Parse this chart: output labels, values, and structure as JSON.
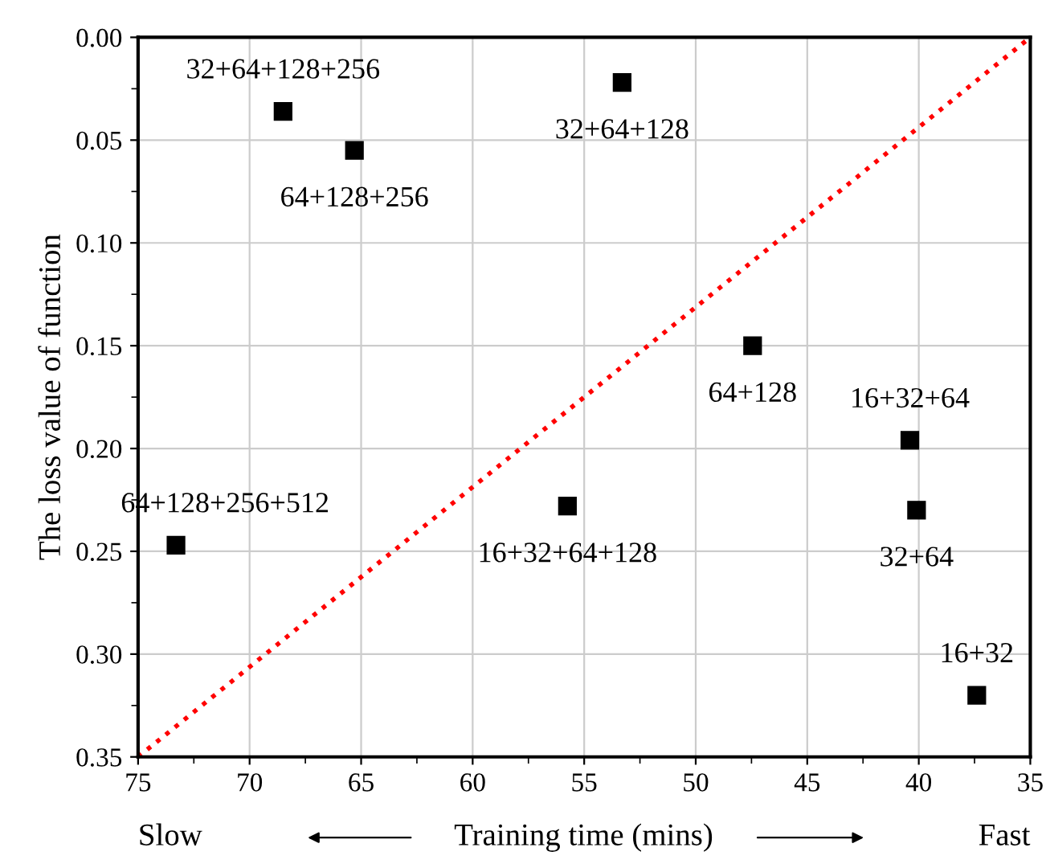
{
  "chart_data": {
    "type": "scatter",
    "xlabel": "Training time (mins)",
    "ylabel": "The loss value of function",
    "series": [
      {
        "color": "#000000",
        "marker": "square",
        "x": [
          68.5,
          65.3,
          53.3,
          47.45,
          40.4,
          40.1,
          37.4,
          55.75,
          73.3
        ],
        "values": [
          0.036,
          0.055,
          0.022,
          0.15,
          0.196,
          0.23,
          0.32,
          0.228,
          0.247
        ]
      },
      {
        "type": "line",
        "color": "#ff0000",
        "line_style": "dotted",
        "x": [
          75,
          35
        ],
        "values": [
          0.35,
          0
        ]
      }
    ],
    "annotations": [
      {
        "text": "32+64+128+256",
        "x": 68.5,
        "y": 0.036
      },
      {
        "text": "64+128+256",
        "x": 65.3,
        "y": 0.055
      },
      {
        "text": "32+64+128",
        "x": 53.3,
        "y": 0.022
      },
      {
        "text": "64+128",
        "x": 47.45,
        "y": 0.15
      },
      {
        "text": "16+32+64",
        "x": 40.4,
        "y": 0.196
      },
      {
        "text": "32+64",
        "x": 40.1,
        "y": 0.23
      },
      {
        "text": "16+32",
        "x": 37.4,
        "y": 0.32
      },
      {
        "text": "16+32+64+128",
        "x": 55.75,
        "y": 0.228
      },
      {
        "text": "64+128+256+512",
        "x": 73.3,
        "y": 0.247
      },
      "Slow",
      "Fast"
    ],
    "xlim": [
      75,
      35
    ],
    "ylim": [
      0.35,
      0
    ],
    "xticks": [
      75,
      70,
      65,
      60,
      55,
      50,
      45,
      40,
      35
    ],
    "yticks": [
      {
        "value": 0.35,
        "label": "0.35"
      },
      {
        "value": 0.3,
        "label": "0.30"
      },
      {
        "value": 0.25,
        "label": "0.25"
      },
      {
        "value": 0.2,
        "label": "0.20"
      },
      {
        "value": 0.15,
        "label": "0.15"
      },
      {
        "value": 0.1,
        "label": "0.10"
      },
      {
        "value": 0.05,
        "label": "0.05"
      },
      {
        "value": 0,
        "label": "0.00"
      }
    ],
    "grid": true,
    "legend": false
  }
}
